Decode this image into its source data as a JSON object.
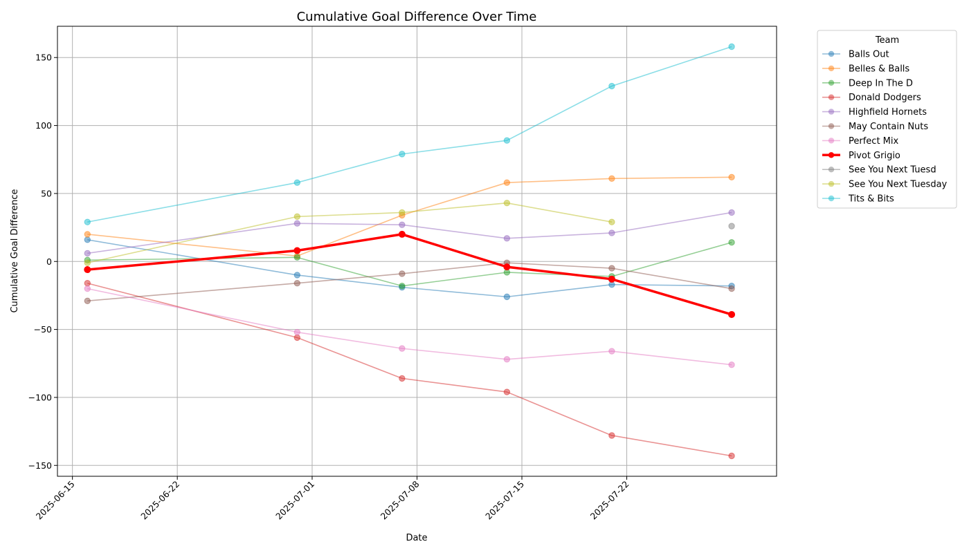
{
  "chart_data": {
    "type": "line",
    "title": "Cumulative Goal Difference Over Time",
    "xlabel": "Date",
    "ylabel": "Cumulative Goal Difference",
    "x_tick_labels": [
      "2025-06-15",
      "2025-06-22",
      "2025-07-01",
      "2025-07-08",
      "2025-07-15",
      "2025-07-22"
    ],
    "y_ticks": [
      -150,
      -100,
      -50,
      0,
      50,
      100,
      150
    ],
    "y_tick_labels": [
      "−150",
      "−100",
      "−50",
      "0",
      "50",
      "100",
      "150"
    ],
    "xlim": [
      "2025-06-14",
      "2025-08-01"
    ],
    "ylim": [
      -158,
      173
    ],
    "grid": true,
    "legend": {
      "title": "Team",
      "position": "outside-right"
    },
    "x": [
      "2025-06-16",
      "2025-06-30",
      "2025-07-07",
      "2025-07-14",
      "2025-07-21",
      "2025-07-29"
    ],
    "series": [
      {
        "name": "Balls Out",
        "color": "#1f77b4",
        "values": [
          16,
          -10,
          -19,
          -26,
          -17,
          -18
        ]
      },
      {
        "name": "Belles & Balls",
        "color": "#ff7f0e",
        "values": [
          20,
          4,
          34,
          58,
          61,
          62
        ]
      },
      {
        "name": "Deep In The D",
        "color": "#2ca02c",
        "values": [
          1,
          3,
          -18,
          -8,
          -11,
          14
        ]
      },
      {
        "name": "Donald Dodgers",
        "color": "#d62728",
        "values": [
          -16,
          -56,
          -86,
          -96,
          -128,
          -143
        ]
      },
      {
        "name": "Highfield Hornets",
        "color": "#9467bd",
        "values": [
          6,
          28,
          27,
          17,
          21,
          36
        ]
      },
      {
        "name": "May Contain Nuts",
        "color": "#8c564b",
        "values": [
          -29,
          -16,
          -9,
          -1,
          -5,
          -20
        ]
      },
      {
        "name": "Perfect Mix",
        "color": "#e377c2",
        "values": [
          -20,
          -52,
          -64,
          -72,
          -66,
          -76
        ]
      },
      {
        "name": "Pivot Grigio",
        "color": "#ff0000",
        "highlight": true,
        "values": [
          -6,
          8,
          20,
          -4,
          -13,
          -39
        ]
      },
      {
        "name": "See You Next Tuesd",
        "color": "#7f7f7f",
        "values": [
          null,
          null,
          null,
          null,
          null,
          26
        ]
      },
      {
        "name": "See You Next Tuesday",
        "color": "#bcbd22",
        "values": [
          -1,
          33,
          36,
          43,
          29,
          null
        ]
      },
      {
        "name": "Tits & Bits",
        "color": "#17becf",
        "values": [
          29,
          58,
          79,
          89,
          129,
          158
        ]
      }
    ]
  }
}
